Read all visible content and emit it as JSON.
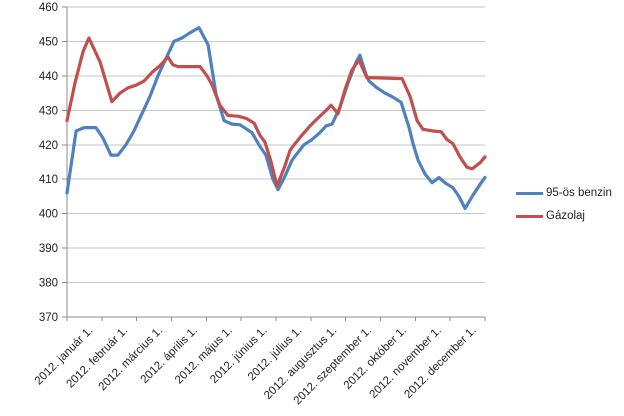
{
  "chart_data": {
    "type": "line",
    "title": "",
    "xlabel": "",
    "ylabel": "",
    "categories": [
      "2012. január 1.",
      "2012. február 1.",
      "2012. március 1.",
      "2012. április 1.",
      "2012. május 1.",
      "2012. június 1.",
      "2012. július 1.",
      "2012. augusztus 1.",
      "2012. szeptember 1.",
      "2012. október 1.",
      "2012. november 1.",
      "2012. december 1."
    ],
    "y_axis": {
      "min": 370,
      "max": 460,
      "step": 10,
      "tick_labels": [
        "370",
        "380",
        "390",
        "400",
        "410",
        "420",
        "430",
        "440",
        "450",
        "460"
      ]
    },
    "x_axis": {
      "unit": "month position (0 = January 1, 12 = end of December), weekly price points",
      "range": [
        0,
        12
      ],
      "ticks_between_categories": true
    },
    "grid": true,
    "legend_position": "right",
    "style": {
      "grid_color": "#c6c6c6",
      "axis_color": "#8c8c8c",
      "label_color": "#1f1f1f",
      "background": "#ffffff",
      "line_width": 3.2
    },
    "series": [
      {
        "name": "95-ös benzin",
        "color": "#4F81BD",
        "points": [
          [
            0,
            406
          ],
          [
            0.26,
            424
          ],
          [
            0.49,
            425
          ],
          [
            0.83,
            425
          ],
          [
            1.03,
            422
          ],
          [
            1.26,
            417
          ],
          [
            1.46,
            417
          ],
          [
            1.69,
            420
          ],
          [
            1.92,
            424
          ],
          [
            2.15,
            429
          ],
          [
            2.38,
            434
          ],
          [
            2.61,
            440
          ],
          [
            2.84,
            445
          ],
          [
            3.07,
            450
          ],
          [
            3.3,
            451
          ],
          [
            3.53,
            452.5
          ],
          [
            3.79,
            454
          ],
          [
            4.05,
            449
          ],
          [
            4.28,
            434.5
          ],
          [
            4.51,
            427
          ],
          [
            4.74,
            426
          ],
          [
            4.97,
            425.8
          ],
          [
            5.31,
            423.5
          ],
          [
            5.54,
            419.5
          ],
          [
            5.71,
            417
          ],
          [
            5.91,
            410
          ],
          [
            6.06,
            407
          ],
          [
            6.26,
            411
          ],
          [
            6.46,
            415.5
          ],
          [
            6.57,
            417
          ],
          [
            6.8,
            420
          ],
          [
            7.03,
            421.5
          ],
          [
            7.26,
            423.5
          ],
          [
            7.44,
            425.5
          ],
          [
            7.61,
            426
          ],
          [
            7.84,
            431
          ],
          [
            8.07,
            438
          ],
          [
            8.3,
            444
          ],
          [
            8.41,
            446
          ],
          [
            8.58,
            440.5
          ],
          [
            8.67,
            438.5
          ],
          [
            8.9,
            436.5
          ],
          [
            9.13,
            435
          ],
          [
            9.36,
            433.8
          ],
          [
            9.59,
            432.3
          ],
          [
            9.82,
            425
          ],
          [
            9.93,
            420.5
          ],
          [
            10.08,
            415.5
          ],
          [
            10.28,
            411.5
          ],
          [
            10.48,
            409
          ],
          [
            10.68,
            410.5
          ],
          [
            10.85,
            409
          ],
          [
            11.08,
            407.5
          ],
          [
            11.25,
            405
          ],
          [
            11.43,
            401.5
          ],
          [
            11.66,
            405.5
          ],
          [
            11.89,
            409
          ],
          [
            12,
            410.5
          ]
        ]
      },
      {
        "name": "Gázolaj",
        "color": "#C0504D",
        "points": [
          [
            0,
            427
          ],
          [
            0.23,
            438
          ],
          [
            0.46,
            447
          ],
          [
            0.63,
            451
          ],
          [
            0.95,
            444
          ],
          [
            1.29,
            432.5
          ],
          [
            1.52,
            435
          ],
          [
            1.75,
            436.5
          ],
          [
            1.98,
            437.3
          ],
          [
            2.21,
            438.5
          ],
          [
            2.44,
            441
          ],
          [
            2.67,
            443
          ],
          [
            2.9,
            445.5
          ],
          [
            3.04,
            443.2
          ],
          [
            3.19,
            442.7
          ],
          [
            3.82,
            442.7
          ],
          [
            4.02,
            440
          ],
          [
            4.16,
            437.5
          ],
          [
            4.39,
            431.5
          ],
          [
            4.62,
            428.5
          ],
          [
            4.91,
            428.3
          ],
          [
            5.14,
            427.7
          ],
          [
            5.37,
            426.3
          ],
          [
            5.54,
            422.7
          ],
          [
            5.68,
            420.8
          ],
          [
            5.86,
            415
          ],
          [
            6.03,
            408
          ],
          [
            6.26,
            414
          ],
          [
            6.4,
            418.3
          ],
          [
            6.52,
            420
          ],
          [
            6.72,
            422.5
          ],
          [
            6.98,
            425.5
          ],
          [
            7.21,
            427.8
          ],
          [
            7.44,
            430
          ],
          [
            7.58,
            431.5
          ],
          [
            7.78,
            429
          ],
          [
            7.98,
            436
          ],
          [
            8.18,
            441.7
          ],
          [
            8.38,
            444.6
          ],
          [
            8.61,
            439.5
          ],
          [
            9.62,
            439.2
          ],
          [
            9.85,
            434
          ],
          [
            10.05,
            427
          ],
          [
            10.22,
            424.5
          ],
          [
            10.51,
            424
          ],
          [
            10.74,
            423.8
          ],
          [
            10.91,
            421.5
          ],
          [
            11.08,
            420.3
          ],
          [
            11.28,
            416.5
          ],
          [
            11.48,
            413.5
          ],
          [
            11.63,
            413
          ],
          [
            11.86,
            414.8
          ],
          [
            12,
            416.5
          ]
        ]
      }
    ]
  }
}
